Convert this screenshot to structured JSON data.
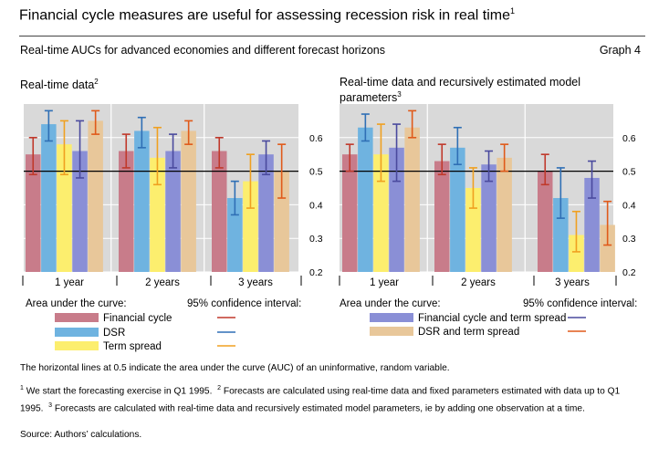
{
  "header": {
    "title": "Financial cycle measures are useful for assessing recession risk in real time",
    "title_note": "1",
    "subtitle": "Real-time AUCs for advanced economies and different forecast horizons",
    "graph_number": "Graph 4"
  },
  "colors": {
    "panel_bg": "#d9d9d9",
    "Financial cycle": {
      "bar": "#c87c8a",
      "ci": "#c0392b"
    },
    "DSR": {
      "bar": "#6fb3e0",
      "ci": "#2f6fb5"
    },
    "Term spread": {
      "bar": "#fcee6e",
      "ci": "#f0a020"
    },
    "Financial cycle and term spread": {
      "bar": "#8a8fd6",
      "ci": "#4a4a9e"
    },
    "DSR and term spread": {
      "bar": "#e8c79a",
      "ci": "#e05a1a"
    }
  },
  "chart_data": [
    {
      "type": "bar",
      "panel": "left",
      "title": "Real-time data",
      "title_note": "2",
      "categories": [
        "1 year",
        "2 years",
        "3 years"
      ],
      "ylim": [
        0.2,
        0.7
      ],
      "yticks": [
        "0.2",
        "0.3",
        "0.4",
        "0.5",
        "0.6"
      ],
      "reference_line": 0.5,
      "series": [
        {
          "name": "Financial cycle",
          "values": [
            0.55,
            0.56,
            0.56
          ],
          "ci_low": [
            0.49,
            0.51,
            0.51
          ],
          "ci_high": [
            0.6,
            0.61,
            0.6
          ]
        },
        {
          "name": "DSR",
          "values": [
            0.64,
            0.62,
            0.42
          ],
          "ci_low": [
            0.59,
            0.57,
            0.37
          ],
          "ci_high": [
            0.68,
            0.66,
            0.47
          ]
        },
        {
          "name": "Term spread",
          "values": [
            0.58,
            0.54,
            0.47
          ],
          "ci_low": [
            0.49,
            0.46,
            0.39
          ],
          "ci_high": [
            0.65,
            0.63,
            0.55
          ]
        },
        {
          "name": "Financial cycle and term spread",
          "values": [
            0.56,
            0.56,
            0.55
          ],
          "ci_low": [
            0.48,
            0.51,
            0.49
          ],
          "ci_high": [
            0.65,
            0.61,
            0.59
          ]
        },
        {
          "name": "DSR and term spread",
          "values": [
            0.65,
            0.62,
            0.5
          ],
          "ci_low": [
            0.61,
            0.58,
            0.42
          ],
          "ci_high": [
            0.68,
            0.65,
            0.58
          ]
        }
      ]
    },
    {
      "type": "bar",
      "panel": "right",
      "title": "Real-time data and recursively estimated model parameters",
      "title_note": "3",
      "categories": [
        "1 year",
        "2 years",
        "3 years"
      ],
      "ylim": [
        0.2,
        0.7
      ],
      "yticks": [
        "0.2",
        "0.3",
        "0.4",
        "0.5",
        "0.6"
      ],
      "reference_line": 0.5,
      "series": [
        {
          "name": "Financial cycle",
          "values": [
            0.55,
            0.53,
            0.5
          ],
          "ci_low": [
            0.5,
            0.49,
            0.46
          ],
          "ci_high": [
            0.58,
            0.58,
            0.55
          ]
        },
        {
          "name": "DSR",
          "values": [
            0.63,
            0.57,
            0.42
          ],
          "ci_low": [
            0.59,
            0.52,
            0.36
          ],
          "ci_high": [
            0.67,
            0.63,
            0.51
          ]
        },
        {
          "name": "Term spread",
          "values": [
            0.55,
            0.45,
            0.31
          ],
          "ci_low": [
            0.47,
            0.39,
            0.26
          ],
          "ci_high": [
            0.64,
            0.51,
            0.38
          ]
        },
        {
          "name": "Financial cycle and term spread",
          "values": [
            0.57,
            0.52,
            0.48
          ],
          "ci_low": [
            0.47,
            0.47,
            0.42
          ],
          "ci_high": [
            0.64,
            0.56,
            0.53
          ]
        },
        {
          "name": "DSR and term spread",
          "values": [
            0.63,
            0.54,
            0.34
          ],
          "ci_low": [
            0.6,
            0.5,
            0.28
          ],
          "ci_high": [
            0.68,
            0.58,
            0.41
          ]
        }
      ]
    }
  ],
  "legend": {
    "left": {
      "auc_label": "Area under the curve:",
      "ci_label": "95% confidence interval:",
      "items": [
        "Financial cycle",
        "DSR",
        "Term spread"
      ]
    },
    "right": {
      "auc_label": "Area under the curve:",
      "ci_label": "95% confidence interval:",
      "items": [
        "Financial cycle and term spread",
        "DSR and term spread"
      ]
    }
  },
  "notes": {
    "horizontal_line": "The horizontal lines at 0.5 indicate the area under the curve (AUC) of an uninformative, random variable.",
    "fn1_mark": "1",
    "fn1": "We start the forecasting exercise in Q1 1995.",
    "fn2_mark": "2",
    "fn2": "Forecasts are calculated using real-time data and fixed parameters estimated with data up to Q1 1995.",
    "fn3_mark": "3",
    "fn3": "Forecasts are calculated with real-time data and recursively estimated model parameters, ie by adding one observation at a time.",
    "source": "Source: Authors’ calculations."
  }
}
